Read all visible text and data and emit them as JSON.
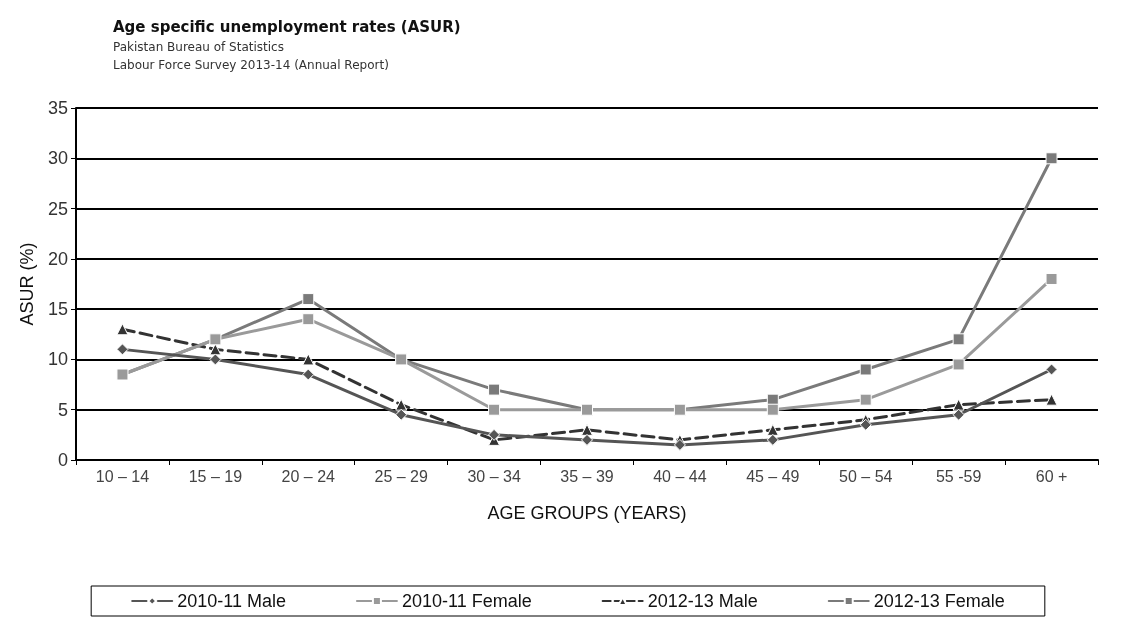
{
  "chart_data": {
    "type": "line",
    "title": "Age specific unemployment rates (ASUR)",
    "subtitle": "Pakistan Bureau of Statistics\nLabour Force Survey 2013-14 (Annual Report)",
    "xlabel": "AGE GROUPS (YEARS)",
    "ylabel": "ASUR (%)",
    "categories": [
      "10 – 14",
      "15 – 19",
      "20 – 24",
      "25 – 29",
      "30 – 34",
      "35 – 39",
      "40 – 44",
      "45 – 49",
      "50 – 54",
      "55 -59",
      "60 +"
    ],
    "series": [
      {
        "name": "2010-11 Male",
        "color": "#555555",
        "marker": "diamond",
        "line_style": "solid",
        "values": [
          11,
          10,
          8.5,
          4.5,
          2.5,
          2,
          1.5,
          2,
          3.5,
          4.5,
          9
        ]
      },
      {
        "name": "2010-11 Female",
        "color": "#9a9a9a",
        "marker": "square",
        "line_style": "solid",
        "values": [
          8.5,
          12,
          14,
          10,
          5,
          5,
          5,
          5,
          6,
          9.5,
          18
        ]
      },
      {
        "name": "2012-13 Male",
        "color": "#333333",
        "marker": "triangle",
        "line_style": "dashed",
        "values": [
          13,
          11,
          10,
          5.5,
          2,
          3,
          2,
          3,
          4,
          5.5,
          6
        ]
      },
      {
        "name": "2012-13 Female",
        "color": "#7a7a7a",
        "marker": "square",
        "line_style": "solid",
        "values": [
          8.5,
          12,
          16,
          10,
          7,
          5,
          5,
          6,
          9,
          12,
          30
        ]
      }
    ],
    "ylim": [
      0,
      35
    ],
    "yticks": [
      0,
      5,
      10,
      15,
      20,
      25,
      30,
      35
    ],
    "grid": "y",
    "legend": "bottom"
  }
}
